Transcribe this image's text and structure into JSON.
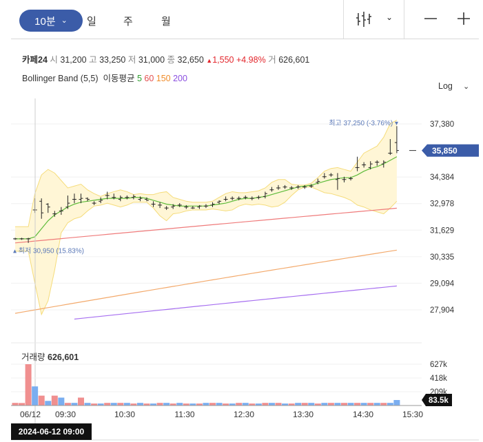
{
  "toolbar": {
    "interval_label": "10분",
    "tabs": [
      "일",
      "주",
      "월"
    ]
  },
  "quote": {
    "name": "카페24",
    "open_label": "시",
    "open": "31,200",
    "high_label": "고",
    "high": "33,250",
    "low_label": "저",
    "low": "31,000",
    "close_label": "종",
    "close": "32,650",
    "change": "1,550",
    "change_pct": "+4.98%",
    "volume_label": "거",
    "volume": "626,601"
  },
  "legend": {
    "bb": "Bollinger Band (5,5)",
    "ma_label": "이동평균",
    "ma": [
      "5",
      "60",
      "150",
      "200"
    ]
  },
  "scale_label": "Log",
  "colors": {
    "ma5": "#5dbb3a",
    "ma60": "#ef7a7a",
    "ma150": "#f3a96b",
    "ma200": "#a66ef0",
    "bb": "#f5dc7a",
    "bb_fill": "#fff6d6",
    "volume_up": "#f08f8f",
    "volume_down": "#7aaef0",
    "accent": "#3b5ca8"
  },
  "chart_data": {
    "type": "candlestick",
    "yscale": "log",
    "y_ticks": [
      37380,
      35850,
      34384,
      32978,
      31629,
      30335,
      29094,
      27904
    ],
    "y_tick_labels": [
      "37,380",
      "34,384",
      "32,978",
      "31,629",
      "30,335",
      "29,094",
      "27,904"
    ],
    "current_price_label": "35,850",
    "current_price": 35850,
    "x_tick_labels": [
      "06/12",
      "09:30",
      "10:30",
      "11:30",
      "12:30",
      "13:30",
      "14:30",
      "15:30"
    ],
    "high_marker": "최고 37,250 (-3.76%)",
    "low_marker": "최저 30,950 (15.83%)",
    "ohlc": [
      [
        31200,
        31250,
        31150,
        31200
      ],
      [
        31200,
        31250,
        31150,
        31200
      ],
      [
        31200,
        31250,
        31000,
        31200
      ],
      [
        32650,
        33250,
        32500,
        32650
      ],
      [
        33100,
        33250,
        32200,
        32500
      ],
      [
        32950,
        33000,
        32500,
        32800
      ],
      [
        32450,
        32600,
        32300,
        32450
      ],
      [
        32600,
        32800,
        32400,
        32600
      ],
      [
        32800,
        33400,
        32700,
        33000
      ],
      [
        33200,
        33500,
        33000,
        33200
      ],
      [
        33200,
        33500,
        33000,
        33250
      ],
      [
        33250,
        33300,
        33100,
        33200
      ],
      [
        33000,
        33100,
        32900,
        33000
      ],
      [
        33100,
        33300,
        33000,
        33150
      ],
      [
        33400,
        33600,
        33200,
        33400
      ],
      [
        33300,
        33500,
        33200,
        33300
      ],
      [
        33200,
        33400,
        33100,
        33300
      ],
      [
        33300,
        33400,
        33200,
        33300
      ],
      [
        33300,
        33450,
        33200,
        33350
      ],
      [
        33200,
        33350,
        33100,
        33250
      ],
      [
        33200,
        33300,
        33100,
        33150
      ],
      [
        32950,
        33100,
        32800,
        32950
      ],
      [
        32900,
        33050,
        32750,
        32900
      ],
      [
        32750,
        32850,
        32650,
        32750
      ],
      [
        32800,
        32950,
        32700,
        32850
      ],
      [
        32900,
        33000,
        32800,
        32900
      ],
      [
        32800,
        32900,
        32700,
        32800
      ],
      [
        32750,
        32850,
        32700,
        32750
      ],
      [
        32800,
        32900,
        32700,
        32850
      ],
      [
        32850,
        32950,
        32750,
        32850
      ],
      [
        32900,
        33050,
        32800,
        32950
      ],
      [
        33050,
        33150,
        32950,
        33100
      ],
      [
        33200,
        33350,
        33100,
        33200
      ],
      [
        33250,
        33350,
        33150,
        33250
      ],
      [
        33250,
        33350,
        33150,
        33250
      ],
      [
        33300,
        33400,
        33200,
        33300
      ],
      [
        33250,
        33350,
        33150,
        33250
      ],
      [
        33300,
        33400,
        33200,
        33300
      ],
      [
        33350,
        33600,
        33250,
        33500
      ],
      [
        33700,
        33850,
        33600,
        33700
      ],
      [
        33800,
        33950,
        33700,
        33800
      ],
      [
        33850,
        33950,
        33750,
        33850
      ],
      [
        33800,
        33900,
        33700,
        33800
      ],
      [
        33850,
        33950,
        33750,
        33850
      ],
      [
        33850,
        33950,
        33750,
        33850
      ],
      [
        33900,
        34000,
        33800,
        33900
      ],
      [
        34100,
        34300,
        34000,
        34150
      ],
      [
        34400,
        34600,
        34300,
        34400
      ],
      [
        34500,
        34600,
        34400,
        34500
      ],
      [
        34250,
        34600,
        33700,
        34300
      ],
      [
        34250,
        34400,
        34100,
        34250
      ],
      [
        34300,
        34400,
        34200,
        34300
      ],
      [
        34900,
        35500,
        34700,
        34900
      ],
      [
        35050,
        35200,
        34900,
        35050
      ],
      [
        34900,
        35250,
        34800,
        35100
      ],
      [
        35200,
        35300,
        35000,
        35200
      ],
      [
        35100,
        35300,
        34900,
        35200
      ],
      [
        35700,
        36500,
        35600,
        35700
      ],
      [
        36300,
        37250,
        35700,
        35850
      ]
    ],
    "ma5": [
      31200,
      31200,
      31200,
      31300,
      31700,
      32100,
      32400,
      32600,
      32800,
      32950,
      33050,
      33100,
      33150,
      33200,
      33250,
      33250,
      33250,
      33250,
      33300,
      33300,
      33250,
      33150,
      33050,
      32950,
      32900,
      32850,
      32850,
      32850,
      32850,
      32850,
      32900,
      32950,
      33000,
      33100,
      33200,
      33250,
      33250,
      33300,
      33350,
      33450,
      33550,
      33650,
      33750,
      33850,
      33900,
      33950,
      34050,
      34150,
      34250,
      34300,
      34350,
      34350,
      34500,
      34700,
      34850,
      34950,
      35100,
      35300,
      35500
    ],
    "ma60": [
      31000,
      31030,
      31060,
      31090,
      31120,
      31150,
      31180,
      31210,
      31240,
      31270,
      31300,
      31330,
      31360,
      31390,
      31420,
      31450,
      31480,
      31510,
      31540,
      31570,
      31600,
      31630,
      31660,
      31690,
      31720,
      31750,
      31780,
      31810,
      31840,
      31870,
      31900,
      31930,
      31960,
      31990,
      32020,
      32050,
      32080,
      32110,
      32140,
      32170,
      32200,
      32230,
      32260,
      32290,
      32320,
      32350,
      32380,
      32410,
      32440,
      32470,
      32500,
      32530,
      32560,
      32590,
      32620,
      32650,
      32680,
      32710,
      32740
    ],
    "ma150": [
      27750,
      27800,
      27850,
      27900,
      27950,
      28000,
      28050,
      28100,
      28150,
      28200,
      28250,
      28300,
      28350,
      28400,
      28450,
      28500,
      28550,
      28600,
      28650,
      28700,
      28750,
      28800,
      28850,
      28900,
      28950,
      29000,
      29050,
      29100,
      29150,
      29200,
      29250,
      29300,
      29350,
      29400,
      29450,
      29500,
      29550,
      29600,
      29650,
      29700,
      29750,
      29800,
      29850,
      29900,
      29950,
      30000,
      30050,
      30100,
      30150,
      30200,
      30250,
      30300,
      30350,
      30400,
      30450,
      30500,
      30550,
      30600,
      30650
    ],
    "ma200": [
      null,
      null,
      null,
      null,
      null,
      null,
      null,
      null,
      null,
      27500,
      27530,
      27560,
      27590,
      27620,
      27650,
      27680,
      27710,
      27740,
      27770,
      27800,
      27830,
      27860,
      27890,
      27920,
      27950,
      27980,
      28010,
      28040,
      28070,
      28100,
      28130,
      28160,
      28190,
      28220,
      28250,
      28280,
      28310,
      28340,
      28370,
      28400,
      28430,
      28460,
      28490,
      28520,
      28550,
      28580,
      28610,
      28640,
      28670,
      28700,
      28730,
      28760,
      28790,
      28820,
      28850,
      28880,
      28910,
      28940,
      28970
    ],
    "bb_upper": [
      31800,
      31800,
      31800,
      33500,
      34500,
      34800,
      34600,
      34200,
      33800,
      33900,
      34000,
      33700,
      33500,
      33350,
      33500,
      33600,
      33700,
      33600,
      33450,
      33500,
      33450,
      33450,
      33550,
      33600,
      33300,
      33200,
      33100,
      33050,
      33050,
      33050,
      33100,
      33300,
      33500,
      33600,
      33550,
      33550,
      33600,
      33650,
      33800,
      34100,
      34250,
      34250,
      34000,
      33950,
      33950,
      34050,
      34350,
      34700,
      34850,
      34900,
      34800,
      34700,
      35200,
      35700,
      35900,
      36100,
      36600,
      37400,
      37600
    ],
    "bb_lower": [
      30600,
      30600,
      30600,
      29100,
      27700,
      28300,
      29700,
      31500,
      32000,
      32200,
      32300,
      32600,
      32850,
      32900,
      33000,
      32900,
      32800,
      32900,
      33050,
      33050,
      33050,
      32750,
      32350,
      32100,
      32450,
      32500,
      32600,
      32650,
      32650,
      32650,
      32700,
      32650,
      32600,
      32650,
      32850,
      32950,
      32900,
      32950,
      32900,
      32800,
      32850,
      33050,
      33400,
      33700,
      33850,
      33850,
      33700,
      33550,
      33500,
      33400,
      33300,
      33150,
      32900,
      32800,
      32650,
      32550,
      32450,
      32750,
      33100
    ],
    "volume_labels": [
      "627k",
      "418k",
      "209k"
    ],
    "volume_title": "거래량",
    "volume_value": "626,601",
    "volume_current_label": "83.5k",
    "volume": [
      40000,
      38000,
      627000,
      290000,
      150000,
      70000,
      150000,
      120000,
      40000,
      40000,
      120000,
      40000,
      30000,
      30000,
      40000,
      40000,
      40000,
      40000,
      30000,
      40000,
      30000,
      30000,
      40000,
      40000,
      30000,
      40000,
      30000,
      30000,
      30000,
      40000,
      40000,
      40000,
      30000,
      30000,
      40000,
      40000,
      30000,
      30000,
      40000,
      40000,
      40000,
      30000,
      30000,
      40000,
      40000,
      40000,
      30000,
      40000,
      40000,
      40000,
      40000,
      40000,
      40000,
      40000,
      40000,
      40000,
      40000,
      40000,
      83500
    ],
    "volume_up": [
      true,
      true,
      true,
      false,
      true,
      false,
      true,
      false,
      true,
      false,
      true,
      false,
      true,
      false,
      true,
      false,
      true,
      false,
      true,
      false,
      true,
      false,
      true,
      false,
      true,
      false,
      true,
      false,
      true,
      false,
      true,
      false,
      true,
      false,
      true,
      false,
      true,
      false,
      true,
      false,
      true,
      false,
      true,
      false,
      true,
      false,
      true,
      false,
      true,
      false,
      true,
      false,
      true,
      false,
      true,
      false,
      true,
      false,
      false
    ]
  },
  "date_label": "2024-06-12 09:00"
}
